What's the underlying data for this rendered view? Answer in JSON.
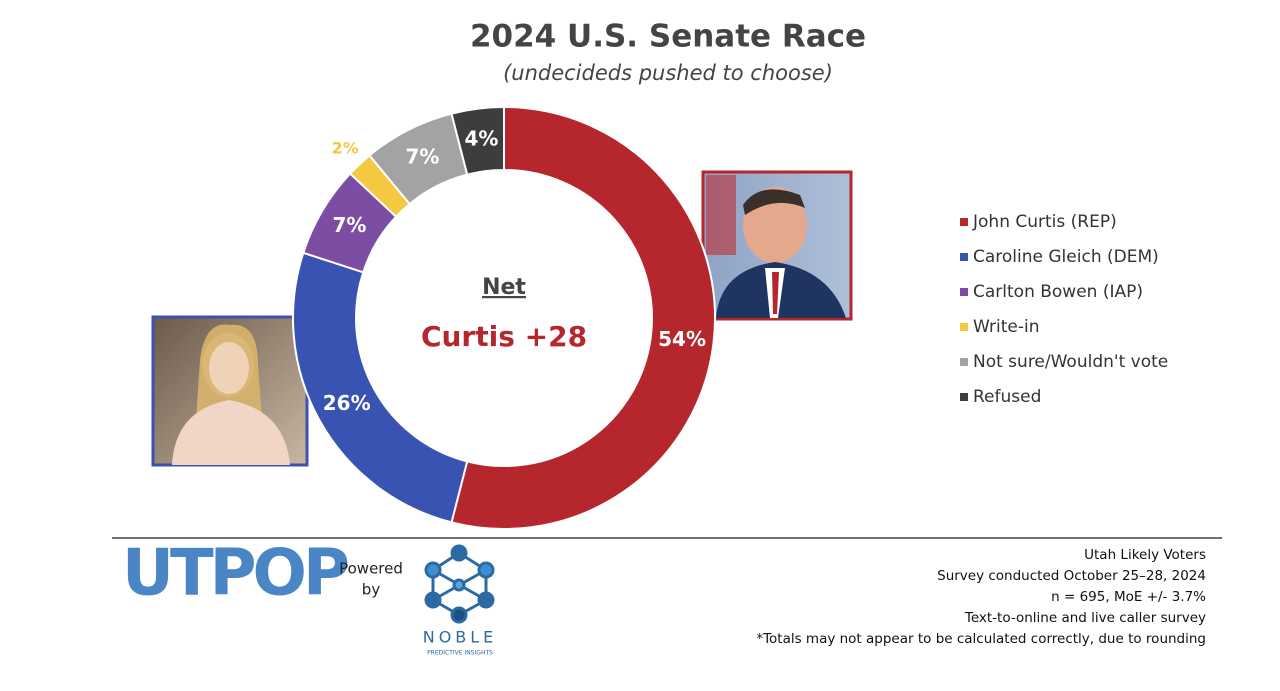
{
  "chart_data": {
    "type": "pie",
    "title": "2024 U.S. Senate Race",
    "subtitle": "(undecideds pushed to choose)",
    "categories": [
      "John Curtis (REP)",
      "Caroline Gleich (DEM)",
      "Carlton Bowen (IAP)",
      "Write-in",
      "Not sure/Wouldn't vote",
      "Refused"
    ],
    "values": [
      54,
      26,
      7,
      2,
      7,
      4
    ],
    "value_labels": [
      "54%",
      "26%",
      "7%",
      "2%",
      "7%",
      "4%"
    ],
    "colors": [
      "#b5262d",
      "#3953b3",
      "#7b4ea3",
      "#f5c842",
      "#a3a3a3",
      "#3d3d3d"
    ],
    "center_heading": "Net",
    "center_text": "Curtis +28",
    "legend": "right"
  },
  "footer": {
    "logo": "UTPOP",
    "powered_by": [
      "Powered",
      "by"
    ],
    "noble": "NOBLE",
    "noble_sub": "PREDICTIVE INSIGHTS",
    "notes": [
      "Utah Likely Voters",
      "Survey conducted October 25–28, 2024",
      "n = 695, MoE +/- 3.7%",
      "Text-to-online and live caller survey",
      "*Totals may not appear to be calculated correctly, due to rounding"
    ]
  }
}
